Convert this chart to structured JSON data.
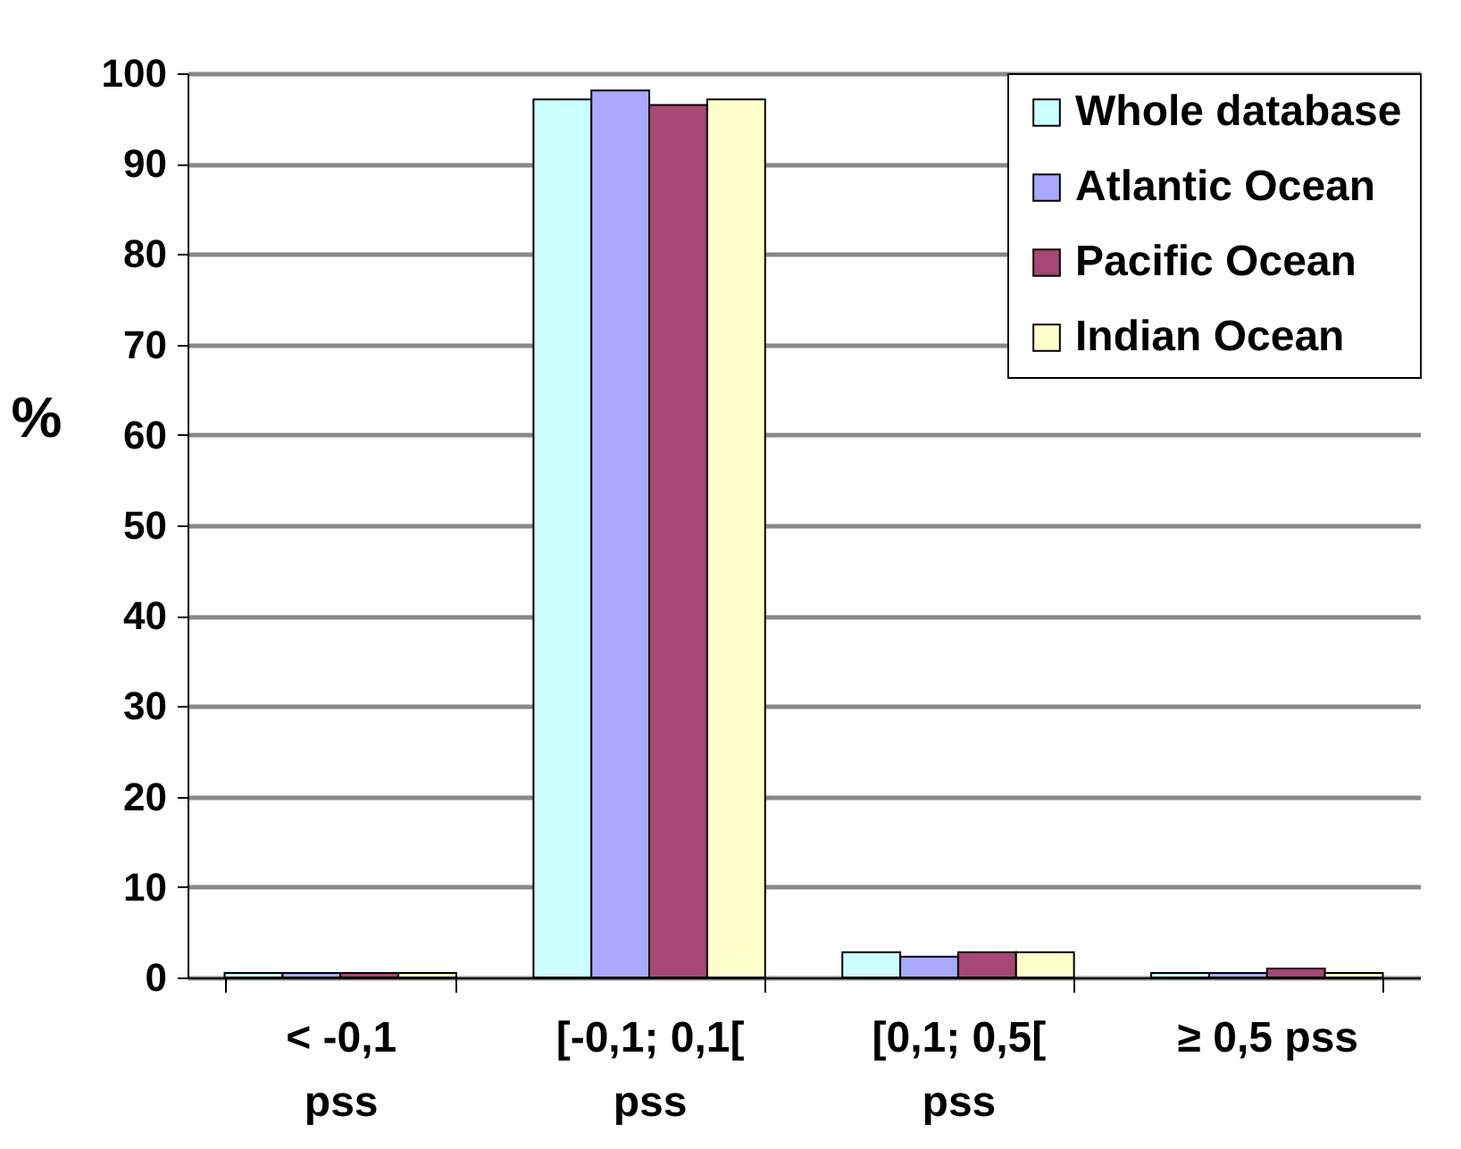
{
  "chart_data": {
    "type": "bar",
    "ylabel": "%",
    "categories": [
      "< -0,1\npss",
      "[-0,1; 0,1[\npss",
      "[0,1; 0,5[\npss",
      "≥ 0,5 pss"
    ],
    "series": [
      {
        "name": "Whole database",
        "color": "#ccffff",
        "values": [
          0.5,
          97.1,
          2.8,
          0.5
        ]
      },
      {
        "name": "Atlantic Ocean",
        "color": "#a9a9ff",
        "values": [
          0.5,
          98.1,
          2.3,
          0.5
        ]
      },
      {
        "name": "Pacific Ocean",
        "color": "#a64873",
        "values": [
          0.5,
          96.5,
          2.8,
          1.0
        ]
      },
      {
        "name": "Indian Ocean",
        "color": "#ffffcc",
        "values": [
          0.5,
          97.1,
          2.8,
          0.5
        ]
      }
    ],
    "ylim": [
      0,
      100
    ],
    "yticks": [
      0,
      10,
      20,
      30,
      40,
      50,
      60,
      70,
      80,
      90,
      100
    ],
    "grid": "y",
    "legend": "top right"
  }
}
